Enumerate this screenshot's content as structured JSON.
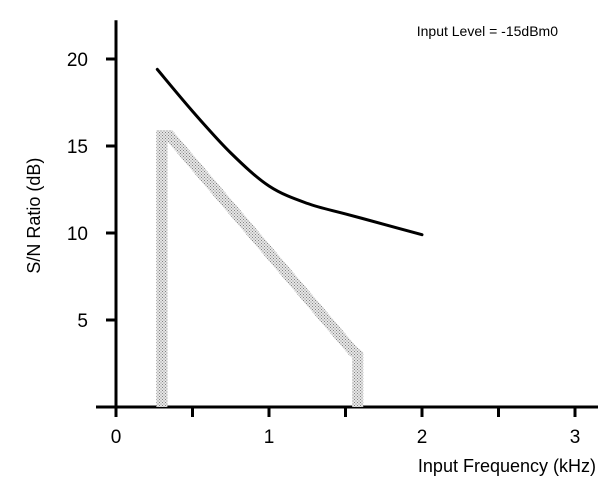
{
  "chart_data": {
    "type": "line",
    "title": "",
    "annotation": "Input Level = -15dBm0",
    "xlabel": "Input Frequency (kHz)",
    "ylabel": "S/N Ratio (dB)",
    "xlim": [
      0,
      3.2
    ],
    "ylim": [
      0,
      22
    ],
    "xticks": [
      0,
      0.5,
      1,
      1.5,
      2,
      2.5,
      3
    ],
    "xtick_labels": [
      "0",
      "",
      "1",
      "",
      "2",
      "",
      "3"
    ],
    "yticks": [
      5,
      10,
      15,
      20
    ],
    "ytick_labels": [
      "5",
      "10",
      "15",
      "20"
    ],
    "grid": false,
    "legend": "none",
    "series": [
      {
        "style": "solid",
        "color": "#000000",
        "x": [
          0.27,
          0.5,
          0.75,
          1.0,
          1.25,
          1.5,
          1.75,
          2.0
        ],
        "y": [
          19.4,
          17.0,
          14.6,
          12.7,
          11.7,
          11.1,
          10.5,
          9.9
        ]
      },
      {
        "style": "stippled-band",
        "color": "#9a9a9a",
        "x": [
          0.3,
          0.3,
          0.35,
          1.55,
          1.58,
          1.58
        ],
        "y": [
          0,
          15.6,
          15.6,
          3.2,
          3.0,
          0
        ]
      }
    ]
  }
}
